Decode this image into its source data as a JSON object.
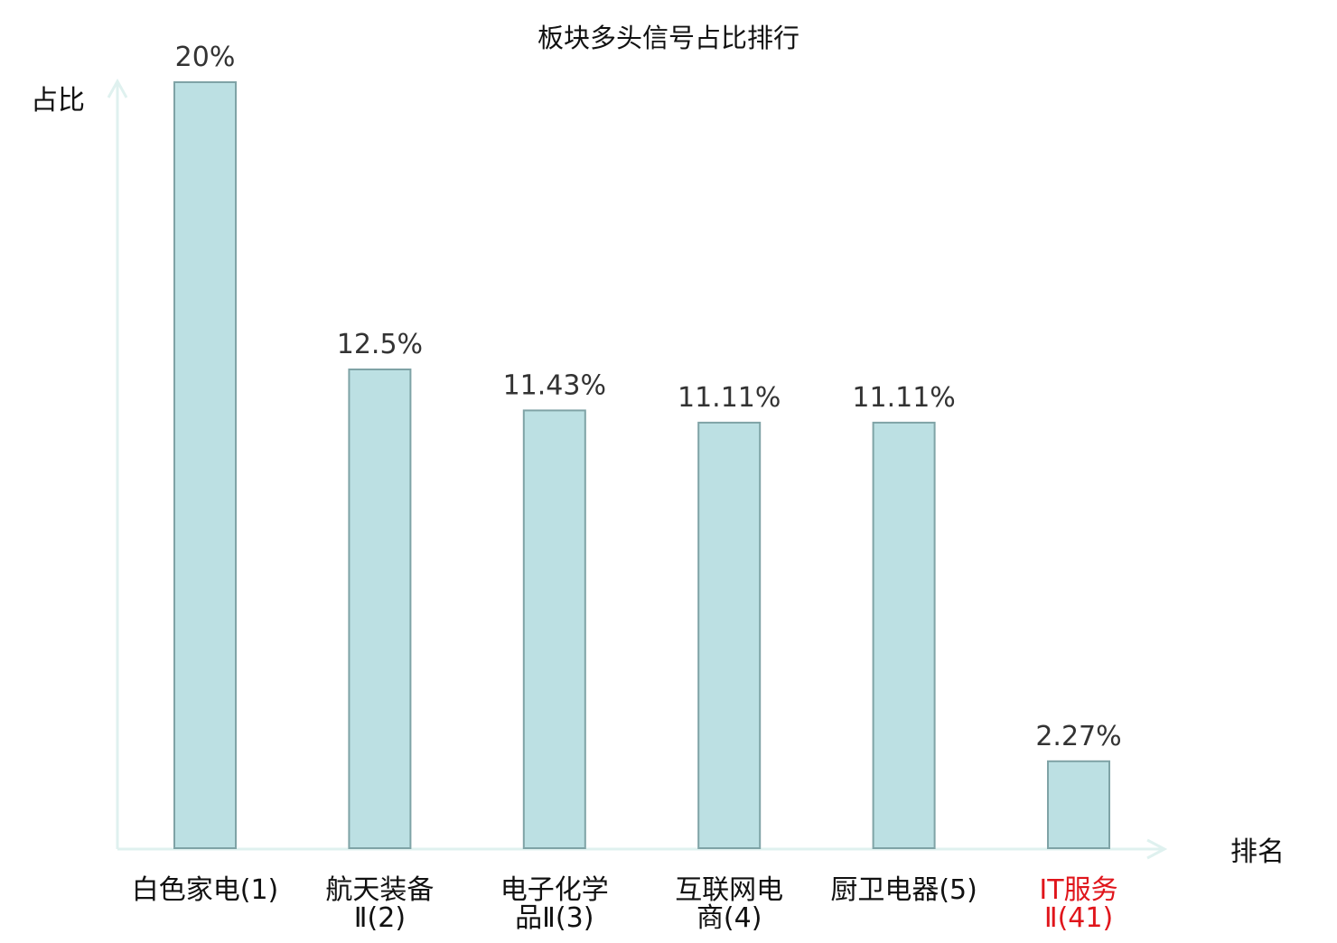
{
  "chart_data": {
    "type": "bar",
    "title": "板块多头信号占比排行",
    "ylabel": "占比",
    "xlabel": "排名",
    "categories": [
      [
        "白色家电(1)"
      ],
      [
        "航天装备",
        "Ⅱ(2)"
      ],
      [
        "电子化学",
        "品Ⅱ(3)"
      ],
      [
        "互联网电",
        "商(4)"
      ],
      [
        "厨卫电器(5)"
      ],
      [
        "IT服务",
        "Ⅱ(41)"
      ]
    ],
    "values": [
      20,
      12.5,
      11.43,
      11.11,
      11.11,
      2.27
    ],
    "value_labels": [
      "20%",
      "12.5%",
      "11.43%",
      "11.11%",
      "11.11%",
      "2.27%"
    ],
    "highlight_index": 5,
    "ylim": [
      0,
      20
    ],
    "grid": false,
    "colors": {
      "bar_fill": "#bce0e3",
      "bar_stroke": "#7fa3a6",
      "axis": "#dff1ef",
      "label": "#111111",
      "value_label": "#333333",
      "highlight": "#e0151b"
    }
  }
}
